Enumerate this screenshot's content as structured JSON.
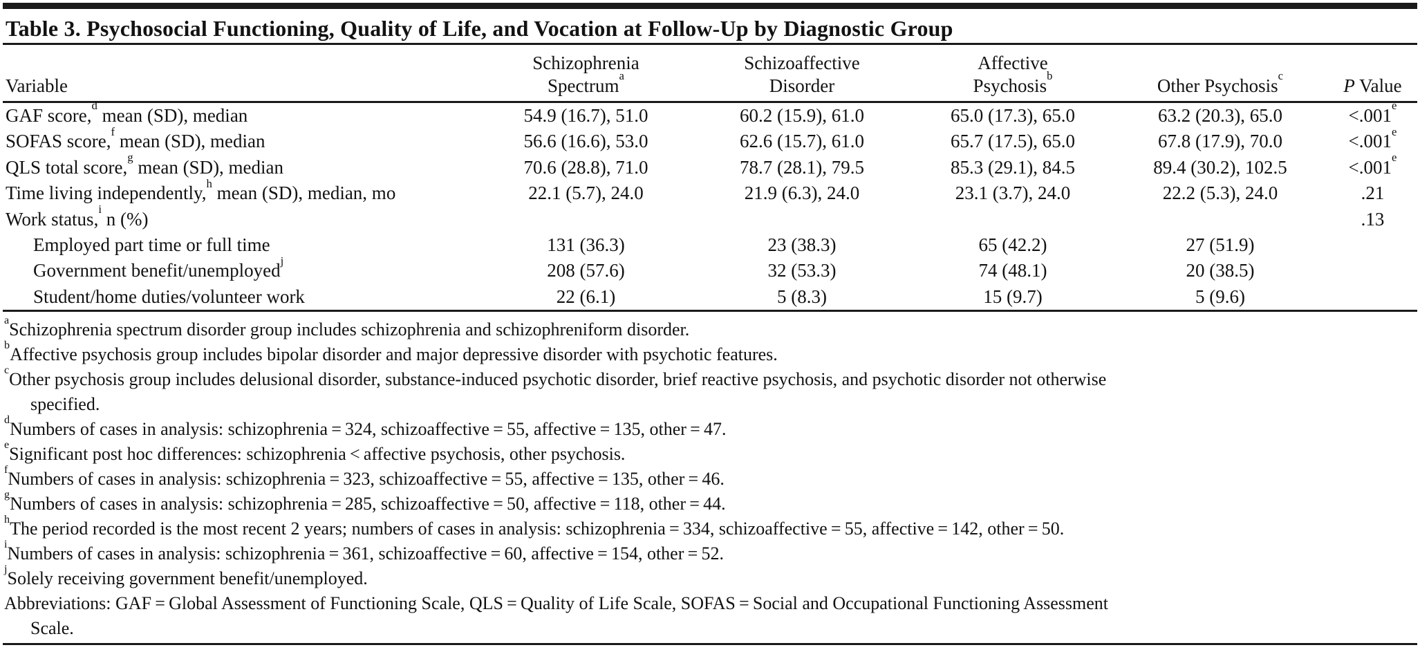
{
  "title": "Table 3. Psychosocial Functioning, Quality of Life, and Vocation at Follow-Up by Diagnostic Group",
  "header": {
    "variable": "Variable",
    "col2": {
      "line1": "Schizophrenia",
      "line2": "Spectrum",
      "sup": "a"
    },
    "col3": {
      "line1": "Schizoaffective",
      "line2": "Disorder"
    },
    "col4": {
      "line1": "Affective",
      "line2": "Psychosis",
      "sup": "b"
    },
    "col5": {
      "line2": "Other Psychosis",
      "sup": "c"
    },
    "col6": {
      "p": "P",
      "rest": " Value"
    }
  },
  "rows": [
    {
      "pre": "GAF score,",
      "sup": "d",
      "post": " mean (SD), median",
      "c1": "54.9 (16.7), 51.0",
      "c2": "60.2 (15.9), 61.0",
      "c3": "65.0 (17.3), 65.0",
      "c4": "63.2 (20.3), 65.0",
      "p": "<.001",
      "p_sup": "e"
    },
    {
      "pre": "SOFAS score,",
      "sup": "f",
      "post": " mean (SD), median",
      "c1": "56.6 (16.6), 53.0",
      "c2": "62.6 (15.7), 61.0",
      "c3": "65.7 (17.5), 65.0",
      "c4": "67.8 (17.9), 70.0",
      "p": "<.001",
      "p_sup": "e"
    },
    {
      "pre": "QLS total score,",
      "sup": "g",
      "post": " mean (SD), median",
      "c1": "70.6 (28.8), 71.0",
      "c2": "78.7 (28.1), 79.5",
      "c3": "85.3 (29.1), 84.5",
      "c4": "89.4 (30.2), 102.5",
      "p": "<.001",
      "p_sup": "e"
    },
    {
      "pre": "Time living independently,",
      "sup": "h",
      "post": " mean (SD), median, mo",
      "c1": "22.1 (5.7), 24.0",
      "c2": "21.9 (6.3), 24.0",
      "c3": "23.1 (3.7), 24.0",
      "c4": "22.2 (5.3), 24.0",
      "p": ".21"
    },
    {
      "pre": "Work status,",
      "sup": "i",
      "post": " n (%)",
      "p": ".13"
    },
    {
      "pre": "Employed part time or full time",
      "c1": "131 (36.3)",
      "c2": "23 (38.3)",
      "c3": "65 (42.2)",
      "c4": "27 (51.9)"
    },
    {
      "pre": "Government benefit/unemployed",
      "sup": "j",
      "c1": "208 (57.6)",
      "c2": "32 (53.3)",
      "c3": "74 (48.1)",
      "c4": "20 (38.5)"
    },
    {
      "pre": "Student/home duties/volunteer work",
      "c1": "22 (6.1)",
      "c2": "5 (8.3)",
      "c3": "15 (9.7)",
      "c4": "5 (9.6)"
    }
  ],
  "footnotes": [
    {
      "sup": "a",
      "text": "Schizophrenia spectrum disorder group includes schizophrenia and schizophreniform disorder."
    },
    {
      "sup": "b",
      "text": "Affective psychosis group includes bipolar disorder and major depressive disorder with psychotic features."
    },
    {
      "sup": "c",
      "text": "Other psychosis group includes delusional disorder, substance-induced psychotic disorder, brief reactive psychosis, and psychotic disorder not otherwise",
      "cont": "specified."
    },
    {
      "sup": "d",
      "text": "Numbers of cases in analysis: schizophrenia = 324, schizoaffective = 55, affective = 135, other = 47."
    },
    {
      "sup": "e",
      "text": "Significant post hoc differences: schizophrenia < affective psychosis, other psychosis."
    },
    {
      "sup": "f",
      "text": "Numbers of cases in analysis: schizophrenia = 323, schizoaffective = 55, affective = 135, other = 46."
    },
    {
      "sup": "g",
      "text": "Numbers of cases in analysis: schizophrenia = 285, schizoaffective = 50, affective = 118, other = 44."
    },
    {
      "sup": "h",
      "text": "The period recorded is the most recent 2 years; numbers of cases in analysis: schizophrenia = 334, schizoaffective = 55, affective = 142, other = 50."
    },
    {
      "sup": "i",
      "text": "Numbers of cases in analysis: schizophrenia = 361, schizoaffective = 60, affective = 154, other = 52."
    },
    {
      "sup": "j",
      "text": "Solely receiving government benefit/unemployed."
    },
    {
      "text": "Abbreviations: GAF = Global Assessment of Functioning Scale, QLS = Quality of Life Scale, SOFAS = Social and Occupational Functioning Assessment",
      "cont": "Scale."
    }
  ]
}
